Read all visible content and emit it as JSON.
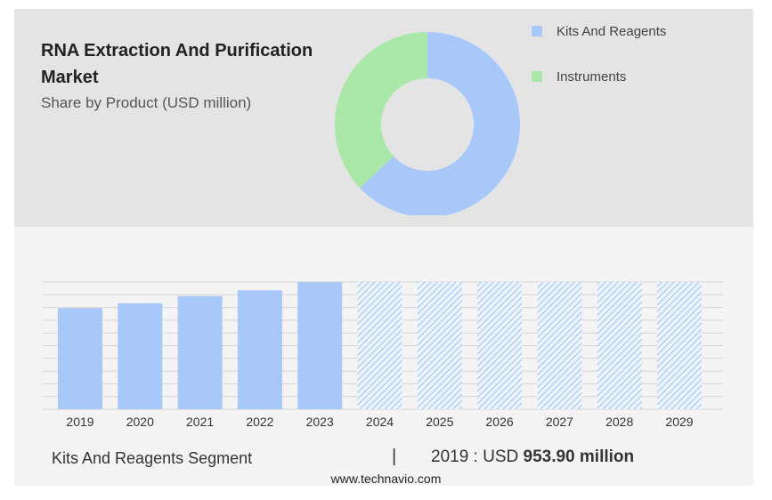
{
  "title": "RNA Extraction And Purification Market",
  "subtitle": "Share by Product (USD million)",
  "legend": [
    {
      "label": "Kits And Reagents",
      "color": "#a8c8fa"
    },
    {
      "label": "Instruments",
      "color": "#a9e8a9"
    }
  ],
  "footer": {
    "segment": "Kits And Reagents Segment",
    "divider": "|",
    "year_prefix": "2019 : USD",
    "value": "953.90 million"
  },
  "site": "www.technavio.com",
  "chart_data": [
    {
      "type": "pie",
      "subtype": "donut",
      "slices": [
        {
          "label": "Kits And Reagents",
          "value": 63,
          "color": "#a8c8fa"
        },
        {
          "label": "Instruments",
          "value": 37,
          "color": "#a9e8a9"
        }
      ]
    },
    {
      "type": "bar",
      "categories": [
        "2019",
        "2020",
        "2021",
        "2022",
        "2023",
        "2024",
        "2025",
        "2026",
        "2027",
        "2028",
        "2029"
      ],
      "values": [
        953.9,
        1000,
        1068,
        1122,
        1200,
        null,
        null,
        null,
        null,
        null,
        null
      ],
      "forecast_categories": [
        "2024",
        "2025",
        "2026",
        "2027",
        "2028",
        "2029"
      ],
      "ylim": [
        0,
        1200
      ],
      "grid": true,
      "bar_color": "#a8c8fa",
      "forecast_pattern": "diagonal-hatch"
    }
  ]
}
